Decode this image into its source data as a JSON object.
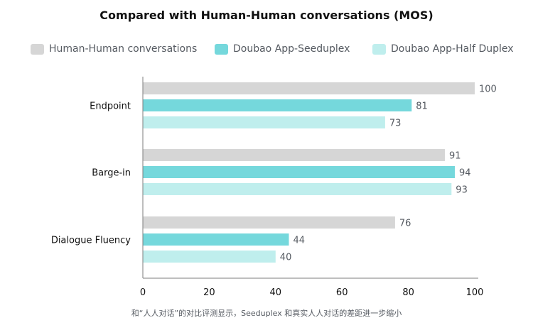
{
  "colors": {
    "human": "#d6d6d6",
    "seeduplex": "#75d8dc",
    "halfduplex": "#bfeeed",
    "axis": "#7d7d7d"
  },
  "footnote": "和“人人对话”的对比评测显示，Seeduplex 和真实人人对话的差距进一步缩小",
  "chart_data": {
    "type": "bar",
    "orientation": "horizontal",
    "title": "Compared with Human-Human conversations (MOS)",
    "categories": [
      "Endpoint",
      "Barge-in",
      "Dialogue Fluency"
    ],
    "series": [
      {
        "name": "Human-Human conversations",
        "values": [
          100,
          91,
          76
        ]
      },
      {
        "name": "Doubao App-Seeduplex",
        "values": [
          81,
          94,
          44
        ]
      },
      {
        "name": "Doubao App-Half Duplex",
        "values": [
          73,
          93,
          40
        ]
      }
    ],
    "xlim": [
      0,
      100
    ],
    "xticks": [
      0,
      20,
      40,
      60,
      80,
      100
    ],
    "xlabel": "",
    "ylabel": "",
    "grid": false,
    "legend_position": "top"
  }
}
